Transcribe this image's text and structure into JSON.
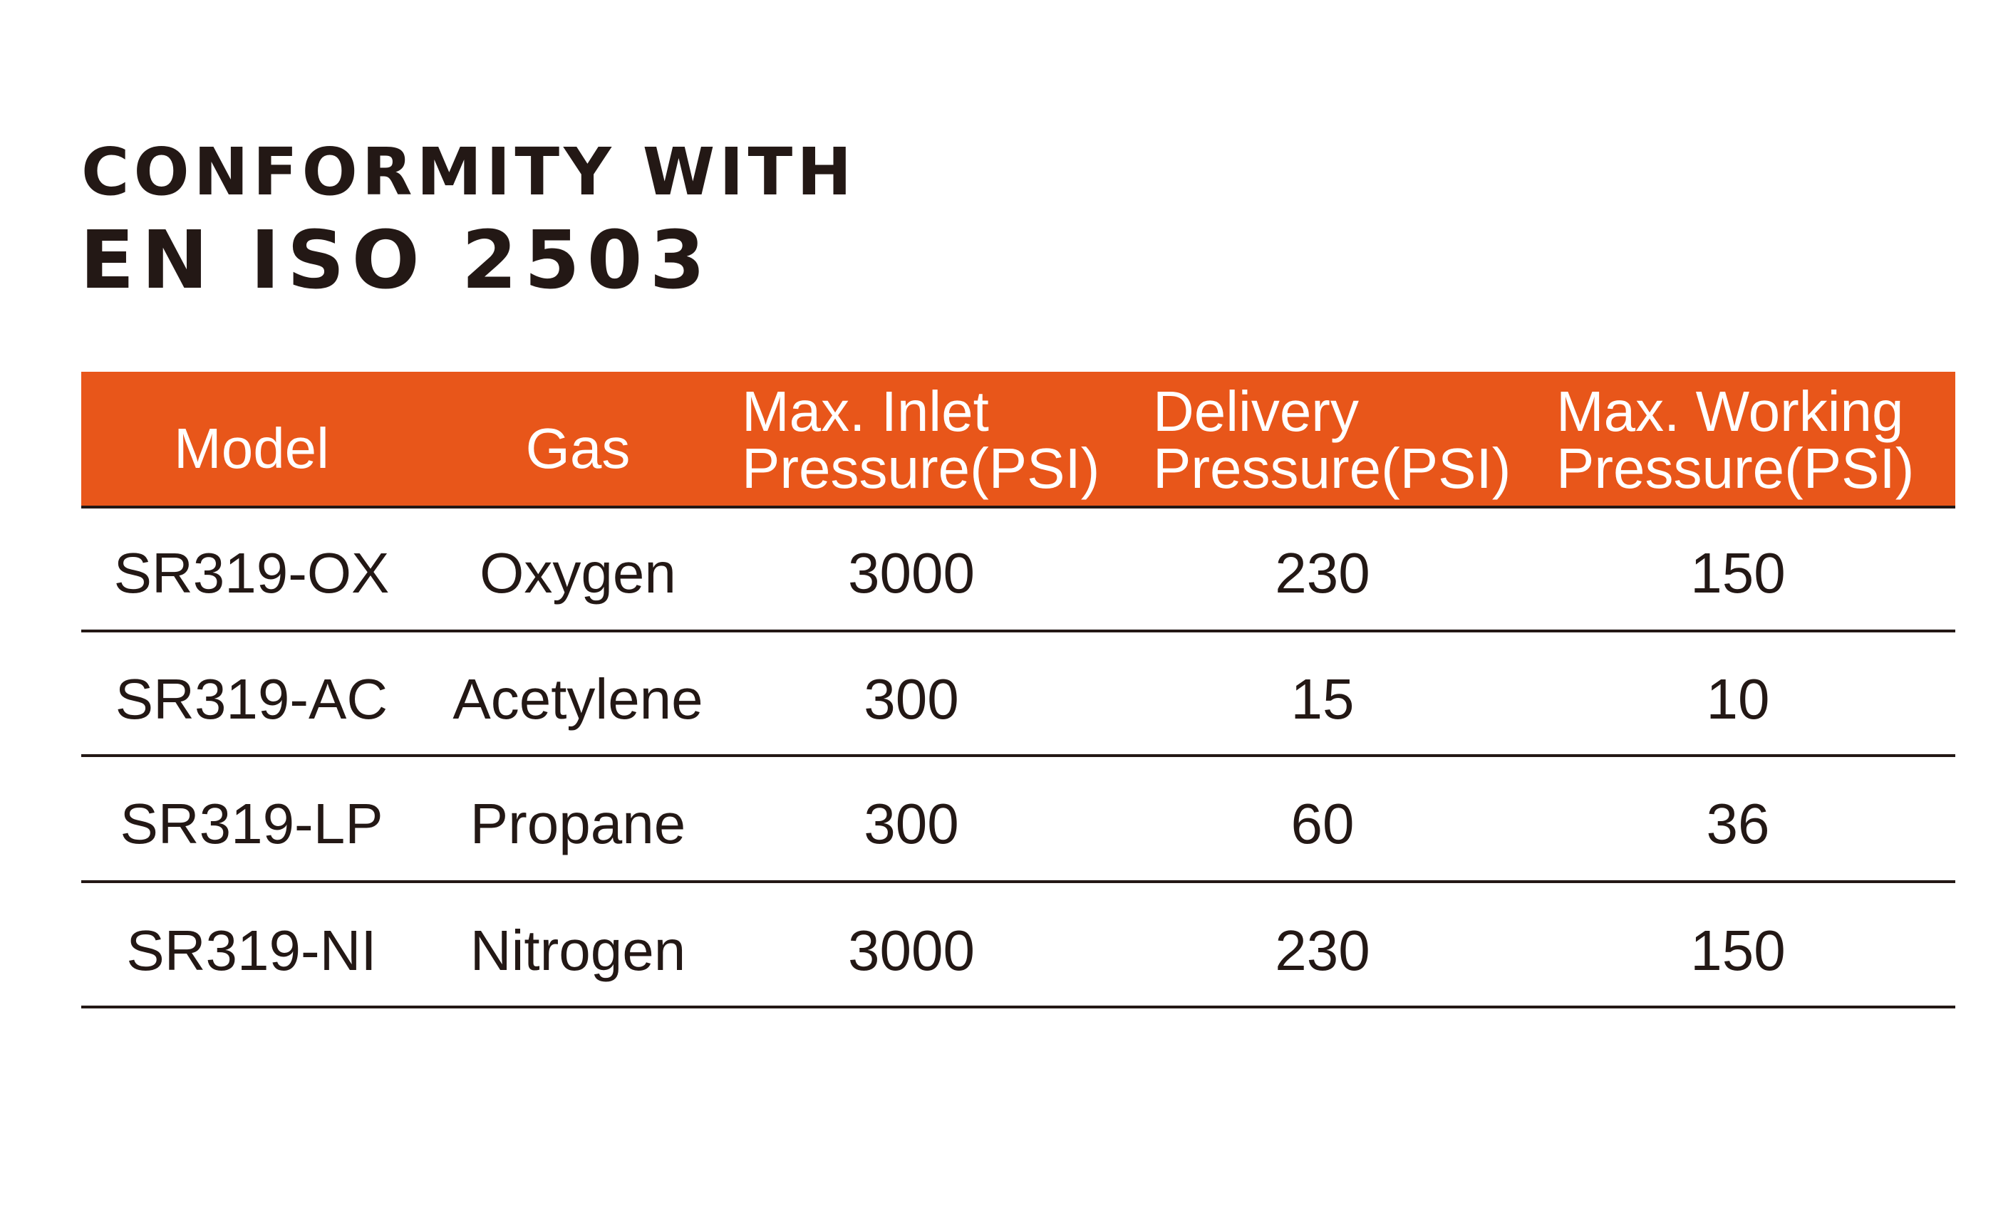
{
  "header": {
    "title": [
      "CONFORMITY WITH",
      "EN ISO 2503"
    ]
  },
  "table": {
    "columns": [
      [
        "Model"
      ],
      [
        "Gas"
      ],
      [
        "Max. Inlet",
        "Pressure(PSI)"
      ],
      [
        "Delivery",
        "Pressure(PSI)"
      ],
      [
        "Max. Working",
        "Pressure(PSI)"
      ]
    ],
    "rows": [
      [
        "SR319-OX",
        "Oxygen",
        3000,
        230,
        150
      ],
      [
        "SR319-AC",
        "Acetylene",
        300,
        15,
        10
      ],
      [
        "SR319-LP",
        "Propane",
        300,
        60,
        36
      ],
      [
        "SR319-NI",
        "Nitrogen",
        3000,
        230,
        150
      ]
    ]
  }
}
